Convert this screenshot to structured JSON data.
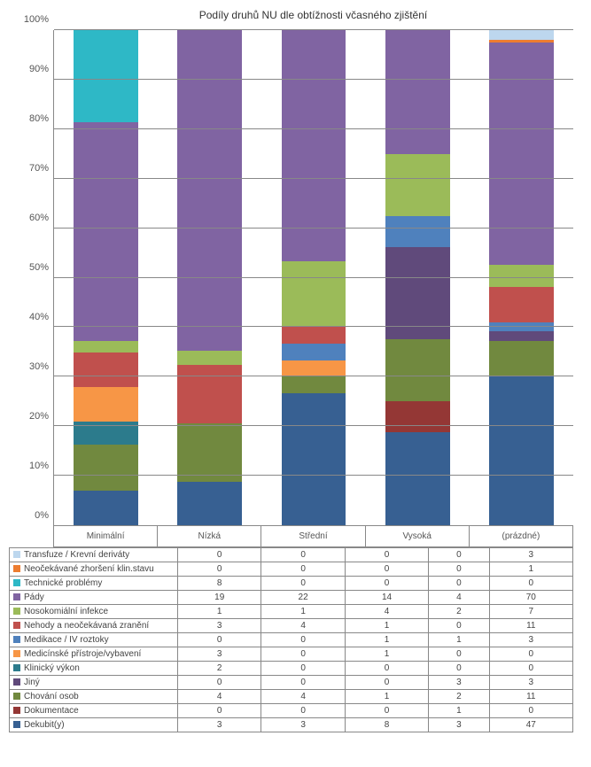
{
  "chart": {
    "title": "Podíly druhů NU dle obtížnosti včasného zjištění",
    "title_fontsize": 12,
    "ylim": [
      0,
      100
    ],
    "ytick_step": 10,
    "ytick_suffix": "%",
    "grid_color": "#888888",
    "background_color": "#ffffff",
    "categories": [
      "Minimální",
      "Nízká",
      "Střední",
      "Vysoká",
      "(prázdné)"
    ],
    "series": [
      {
        "name": "Transfuze / Krevní deriváty",
        "color": "#bdd7ee",
        "values": [
          0,
          0,
          0,
          0,
          3
        ]
      },
      {
        "name": "Neočekávané zhoršení klin.stavu",
        "color": "#ed7d31",
        "values": [
          0,
          0,
          0,
          0,
          1
        ]
      },
      {
        "name": "Technické problémy",
        "color": "#2eb8c6",
        "values": [
          8,
          0,
          0,
          0,
          0
        ]
      },
      {
        "name": "Pády",
        "color": "#8064a2",
        "values": [
          19,
          22,
          14,
          4,
          70
        ]
      },
      {
        "name": "Nosokomiální infekce",
        "color": "#9bbb59",
        "values": [
          1,
          1,
          4,
          2,
          7
        ]
      },
      {
        "name": "Nehody a neočekávaná zranění",
        "color": "#c0504d",
        "values": [
          3,
          4,
          1,
          0,
          11
        ]
      },
      {
        "name": "Medikace / IV roztoky",
        "color": "#4f81bd",
        "values": [
          0,
          0,
          1,
          1,
          3
        ]
      },
      {
        "name": "Medicínské přístroje/vybavení",
        "color": "#f79646",
        "values": [
          3,
          0,
          1,
          0,
          0
        ]
      },
      {
        "name": "Klinický výkon",
        "color": "#2c7b8c",
        "values": [
          2,
          0,
          0,
          0,
          0
        ]
      },
      {
        "name": "Jiný",
        "color": "#604a7b",
        "values": [
          0,
          0,
          0,
          3,
          3
        ]
      },
      {
        "name": "Chování osob",
        "color": "#71893f",
        "values": [
          4,
          4,
          1,
          2,
          11
        ]
      },
      {
        "name": "Dokumentace",
        "color": "#943735",
        "values": [
          0,
          0,
          0,
          1,
          0
        ]
      },
      {
        "name": "Dekubit(y)",
        "color": "#376092",
        "values": [
          3,
          3,
          8,
          3,
          47
        ]
      }
    ]
  }
}
